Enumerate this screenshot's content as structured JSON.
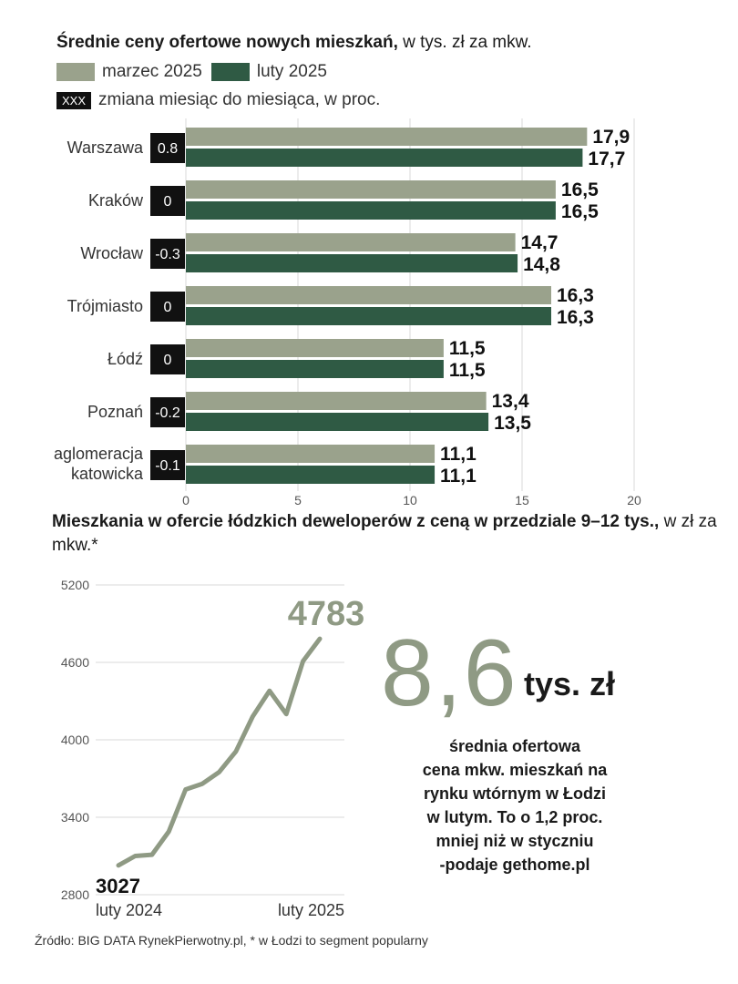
{
  "header": {
    "title_bold": "Średnie ceny ofertowe nowych mieszkań,",
    "title_rest": " w tys. zł za mkw.",
    "legend_marzec": "marzec 2025",
    "legend_luty": "luty 2025",
    "legend_xxx_box": "XXX",
    "legend_change": "zmiana miesiąc do miesiąca, w proc."
  },
  "colors": {
    "marzec": "#9aa28c",
    "luty": "#2f5a44",
    "badge": "#111111",
    "line": "#8f9a84"
  },
  "chart_data": [
    {
      "type": "bar",
      "orientation": "horizontal",
      "categories": [
        "Warszawa",
        "Kraków",
        "Wrocław",
        "Trójmiasto",
        "Łódź",
        "Poznań",
        "aglomeracja katowicka"
      ],
      "series": [
        {
          "name": "marzec 2025",
          "values": [
            17.9,
            16.5,
            14.7,
            16.3,
            11.5,
            13.4,
            11.1
          ]
        },
        {
          "name": "luty 2025",
          "values": [
            17.7,
            16.5,
            14.8,
            16.3,
            11.5,
            13.5,
            11.1
          ]
        }
      ],
      "value_labels_marzec": [
        "17,9",
        "16,5",
        "14,7",
        "16,3",
        "11,5",
        "13,4",
        "11,1"
      ],
      "value_labels_luty": [
        "17,7",
        "16,5",
        "14,8",
        "16,3",
        "11,5",
        "13,5",
        "11,1"
      ],
      "change_labels": [
        "0.8",
        "0",
        "-0.3",
        "0",
        "0",
        "-0.2",
        "-0.1"
      ],
      "xlim": [
        0,
        20
      ],
      "xticks": [
        "0",
        "5",
        "10",
        "15",
        "20"
      ],
      "grid": true
    },
    {
      "type": "line",
      "title_bold": "Mieszkania w ofercie łódzkich deweloperów z ceną w przedziale 9–12 tys.,",
      "title_rest": " w zł za mkw.*",
      "y": [
        3027,
        3100,
        3110,
        3290,
        3615,
        3660,
        3750,
        3910,
        4180,
        4380,
        4200,
        4610,
        4783
      ],
      "ylim": [
        2800,
        5200
      ],
      "yticks": [
        "5200",
        "4600",
        "4000",
        "3400",
        "2800"
      ],
      "xlabels": [
        "luty 2024",
        "luty 2025"
      ],
      "start_label": "3027",
      "end_label": "4783",
      "grid": true
    }
  ],
  "callout": {
    "value": "8,6",
    "unit": "tys. zł",
    "text": [
      "średnia ofertowa",
      "cena mkw. mieszkań na",
      "rynku wtórnym w Łodzi",
      "w lutym. To o 1,2 proc.",
      "mniej niż w styczniu",
      "-podaje gethome.pl"
    ]
  },
  "footer": {
    "source": "Źródło: BIG DATA RynekPierwotny.pl, * w Łodzi to segment popularny"
  }
}
